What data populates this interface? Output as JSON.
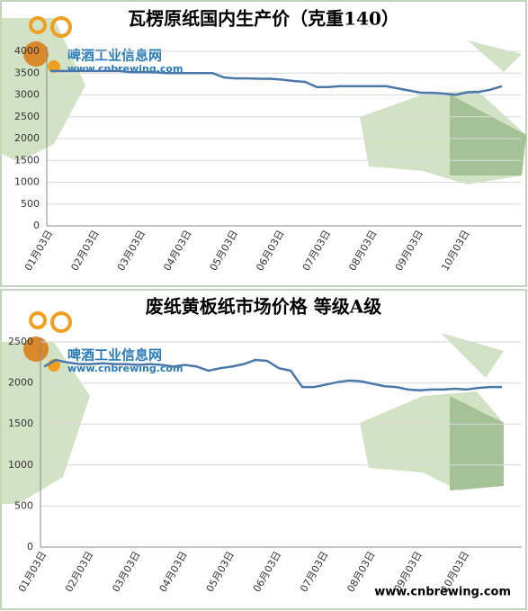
{
  "chart_data": [
    {
      "type": "line",
      "title": "瓦楞原纸国内生产价（克重140）",
      "watermark_title": "啤酒工业信息网",
      "watermark_url": "www.cnbrewing.com",
      "categories": [
        "01月03日",
        null,
        null,
        null,
        "02月03日",
        null,
        null,
        null,
        "03月03日",
        null,
        null,
        null,
        "04月03日",
        null,
        null,
        null,
        "05月03日",
        null,
        null,
        null,
        "06月03日",
        null,
        null,
        null,
        "07月03日",
        null,
        null,
        null,
        "08月03日",
        null,
        null,
        null,
        "09月03日",
        null,
        null,
        null,
        "10月03日",
        null,
        null,
        null
      ],
      "series": [
        {
          "color": "#4a78ab",
          "values": [
            3550,
            3550,
            3550,
            3550,
            3550,
            3550,
            3550,
            3520,
            3520,
            3520,
            3500,
            3500,
            3500,
            3500,
            3500,
            3400,
            3380,
            3380,
            3370,
            3370,
            3350,
            3320,
            3300,
            3180,
            3180,
            3200,
            3200,
            3200,
            3200,
            3200,
            3150,
            3100,
            3050,
            3050,
            3030,
            3000,
            3060,
            3070,
            3120,
            3200
          ]
        }
      ],
      "ylim": [
        0,
        4000
      ],
      "yticks": [
        0,
        500,
        1000,
        1500,
        2000,
        2500,
        3000,
        3500,
        4000
      ],
      "grid": true
    },
    {
      "type": "line",
      "title": "废纸黄板纸市场价格 等级A级",
      "watermark_title": "啤酒工业信息网",
      "watermark_url": "www.cnbrewing.com",
      "categories": [
        "01月03日",
        null,
        null,
        null,
        "02月03日",
        null,
        null,
        null,
        "03月03日",
        null,
        null,
        null,
        "04月03日",
        null,
        null,
        null,
        "05月03日",
        null,
        null,
        null,
        "06月03日",
        null,
        null,
        null,
        "07月03日",
        null,
        null,
        null,
        "08月03日",
        null,
        null,
        null,
        "09月03日",
        null,
        null,
        null,
        "10月03日",
        null,
        null,
        null
      ],
      "series": [
        {
          "color": "#4a78ab",
          "values": [
            2200,
            2280,
            2250,
            2230,
            2230,
            2240,
            2230,
            2230,
            2220,
            2230,
            2220,
            2200,
            2220,
            2200,
            2150,
            2180,
            2200,
            2230,
            2280,
            2270,
            2180,
            2150,
            1950,
            1950,
            1980,
            2010,
            2030,
            2020,
            1990,
            1960,
            1950,
            1920,
            1910,
            1920,
            1920,
            1930,
            1920,
            1940,
            1950,
            1950
          ]
        }
      ],
      "ylim": [
        0,
        2500
      ],
      "yticks": [
        0,
        500,
        1000,
        1500,
        2000,
        2500
      ],
      "grid": true
    }
  ],
  "footer": "www.cnbrewing.com"
}
